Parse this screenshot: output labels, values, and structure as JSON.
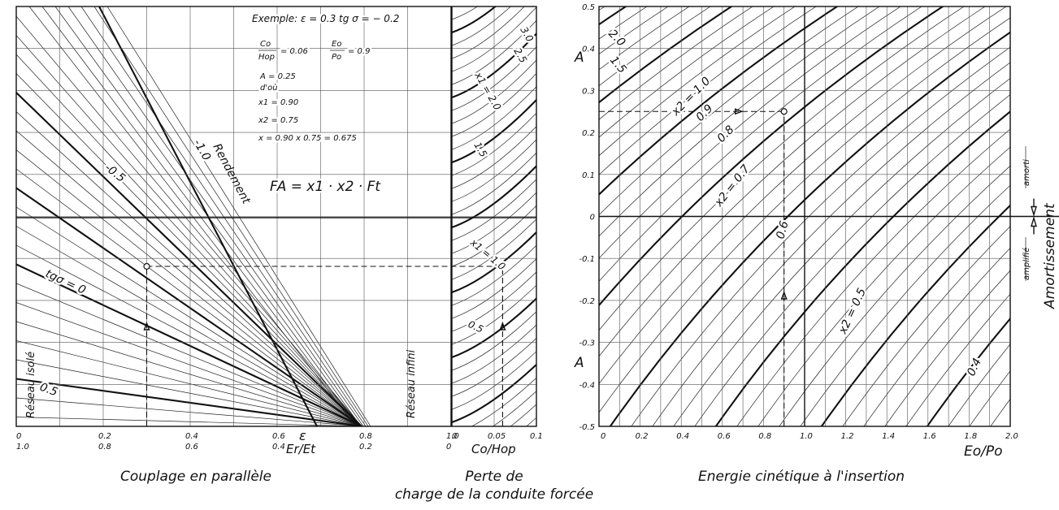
{
  "chart_data": [
    {
      "type": "line",
      "panel": "couplage-parallele",
      "caption": "Couplage  en  parallèle",
      "x_ticks_top": [
        "0",
        "0.2",
        "0.4",
        "0.6",
        "0.8",
        "1.0"
      ],
      "x_ticks_bottom": [
        "1.0",
        "0.8",
        "0.6",
        "0.4",
        "0.2",
        "0"
      ],
      "xlabel_top": "ε",
      "xlabel_bottom": "Er/Et",
      "xlim": [
        0,
        1
      ],
      "series_labels": [
        "Rendement",
        "-1.0",
        "-0.5",
        "tgσ = 0",
        "0.5"
      ],
      "side_labels": [
        "Réseau isolé",
        "Réseau infini"
      ],
      "tg_sigma_values": [
        -1.0,
        -0.5,
        0,
        0.5
      ],
      "formula": "FA = x1 · x2 · Ft",
      "example_text": {
        "l1": "Exemple:  ε = 0.3   tg σ = − 0.2",
        "l2a": "Co",
        "l2b": "Hop",
        "l2c": "= 0.06",
        "l2d": "Eo",
        "l2e": "Po",
        "l2f": "= 0.9",
        "l3": "A = 0.25",
        "l4": "d'où",
        "l5": "x1 = 0.90",
        "l6": "x2 = 0.75",
        "l7": "x = 0.90 x 0.75 = 0.675"
      },
      "example_point": {
        "epsilon": 0.3,
        "tg_sigma": -0.2
      }
    },
    {
      "type": "line",
      "panel": "perte-de-charge",
      "caption_l1": "Perte de",
      "caption_l2": "charge de la conduite forcée",
      "x_ticks": [
        "0",
        "0.05",
        "0.1"
      ],
      "xlabel": "Co/Hop",
      "xlim": [
        0,
        0.1
      ],
      "series_labels": [
        "3.0",
        "2.5",
        "x1 = 2.0",
        "1.5",
        "x1 = 1.0",
        "0.5"
      ],
      "x1_values": [
        3.0,
        2.5,
        2.0,
        1.5,
        1.0,
        0.5
      ],
      "example_point": {
        "co_hop": 0.06
      }
    },
    {
      "type": "line",
      "panel": "energie-cinetique",
      "caption": "Energie cinétique à l'insertion",
      "ylabel": "A",
      "y_ticks": [
        "0.5",
        "0.4",
        "0.3",
        "0.2",
        "0.1",
        "0",
        "-0.1",
        "-0.2",
        "-0.3",
        "-0.4",
        "-0.5"
      ],
      "x_ticks": [
        "0",
        "0.2",
        "0.4",
        "0.6",
        "0.8",
        "1.0",
        "1.2",
        "1.4",
        "1.6",
        "1.8",
        "2.0"
      ],
      "xlabel": "Eo/Po",
      "xlim": [
        0,
        2
      ],
      "ylim": [
        -0.5,
        0.5
      ],
      "series_labels": [
        "2.0",
        "1.5",
        "x2 = 1.0",
        "0.9",
        "0.8",
        "x2 = 0.7",
        "0.6",
        "x2 = 0.5",
        "0.4"
      ],
      "x2_values": [
        2.0,
        1.5,
        1.0,
        0.9,
        0.8,
        0.7,
        0.6,
        0.5,
        0.4
      ],
      "right_labels": {
        "amorti": "amorti",
        "amplifie": "amplifié",
        "amortissement": "Amortissement"
      },
      "example_point": {
        "eo_po": 0.9,
        "A": 0.25
      }
    }
  ]
}
